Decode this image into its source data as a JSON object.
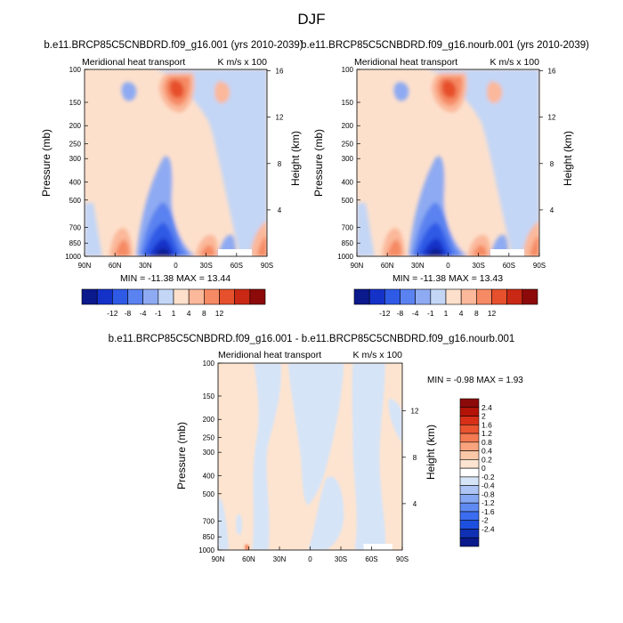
{
  "page_title": "DJF",
  "colors": {
    "full_scale": [
      "#0a1a8c",
      "#1432c8",
      "#2e5ae6",
      "#5a82f0",
      "#8eaaf2",
      "#c3d6f6",
      "#fde0cc",
      "#fbb89a",
      "#f58a64",
      "#e6502c",
      "#c82814",
      "#8c0a0a"
    ],
    "diff_scale": [
      "#0a1a8c",
      "#1030b4",
      "#1e50e0",
      "#3c6cf0",
      "#5e8af2",
      "#86a8f2",
      "#aec4f4",
      "#d6e4f8",
      "#ffffff",
      "#fde4d0",
      "#fbc8a8",
      "#f9a47e",
      "#f47a52",
      "#ea5430",
      "#d83018",
      "#b41408",
      "#8c0a0a"
    ]
  },
  "chart_data": [
    {
      "type": "contour",
      "title": "b.e11.BRCP85C5CNBDRD.f09_g16.001 (yrs 2010-2039)",
      "left_label": "Meridional heat transport",
      "right_label": "K m/s x 100",
      "ylabel": "Pressure (mb)",
      "ylabel_right": "Height (km)",
      "x_ticks": [
        "90N",
        "60N",
        "30N",
        "0",
        "30S",
        "60S",
        "90S"
      ],
      "y_ticks": [
        "100",
        "150",
        "200",
        "250",
        "300",
        "400",
        "500",
        "700",
        "850",
        "1000"
      ],
      "y_values": [
        100,
        150,
        200,
        250,
        300,
        400,
        500,
        700,
        850,
        1000
      ],
      "height_ticks": [
        "16",
        "12",
        "8",
        "4"
      ],
      "height_values": [
        16,
        12,
        8,
        4
      ],
      "stats": "MIN = -11.38  MAX =  13.44",
      "colorbar_labels": [
        "-12",
        "-8",
        "-4",
        "-1",
        "1",
        "4",
        "8",
        "12"
      ]
    },
    {
      "type": "contour",
      "title": "b.e11.BRCP85C5CNBDRD.f09_g16.nourb.001 (yrs 2010-2039)",
      "left_label": "Meridional heat transport",
      "right_label": "K m/s x 100",
      "ylabel": "Pressure (mb)",
      "ylabel_right": "Height (km)",
      "x_ticks": [
        "90N",
        "60N",
        "30N",
        "0",
        "30S",
        "60S",
        "90S"
      ],
      "y_ticks": [
        "100",
        "150",
        "200",
        "250",
        "300",
        "400",
        "500",
        "700",
        "850",
        "1000"
      ],
      "y_values": [
        100,
        150,
        200,
        250,
        300,
        400,
        500,
        700,
        850,
        1000
      ],
      "height_ticks": [
        "16",
        "12",
        "8",
        "4"
      ],
      "height_values": [
        16,
        12,
        8,
        4
      ],
      "stats": "MIN = -11.38  MAX =  13.43",
      "colorbar_labels": [
        "-12",
        "-8",
        "-4",
        "-1",
        "1",
        "4",
        "8",
        "12"
      ]
    },
    {
      "type": "contour",
      "title": "b.e11.BRCP85C5CNBDRD.f09_g16.001 - b.e11.BRCP85C5CNBDRD.f09_g16.nourb.001",
      "left_label": "Meridional heat transport",
      "right_label": "K m/s x 100",
      "ylabel": "Pressure (mb)",
      "ylabel_right": "Height (km)",
      "x_ticks": [
        "90N",
        "60N",
        "30N",
        "0",
        "30S",
        "60S",
        "90S"
      ],
      "y_ticks": [
        "100",
        "150",
        "200",
        "250",
        "300",
        "400",
        "500",
        "700",
        "850",
        "1000"
      ],
      "y_values": [
        100,
        150,
        200,
        250,
        300,
        400,
        500,
        700,
        850,
        1000
      ],
      "height_ticks": [
        "12",
        "8",
        "4"
      ],
      "height_values": [
        12,
        8,
        4
      ],
      "stats": "MIN =  -0.98  MAX =   1.93",
      "colorbar_labels": [
        "2.4",
        "2",
        "1.6",
        "1.2",
        "0.8",
        "0.4",
        "0.2",
        "0",
        "-0.2",
        "-0.4",
        "-0.8",
        "-1.2",
        "-1.6",
        "-2",
        "-2.4"
      ]
    }
  ]
}
